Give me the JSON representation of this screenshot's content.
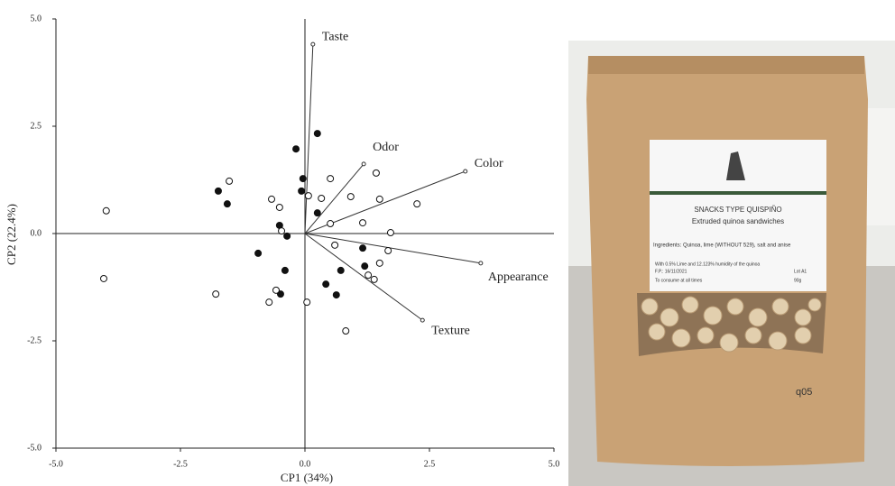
{
  "chart_data": {
    "type": "biplot",
    "x_label": "CP1 (34%)",
    "y_label": "CP2 (22.4%)",
    "xlim": [
      -5,
      5
    ],
    "ylim": [
      -5,
      5
    ],
    "xticks": [
      {
        "value": -5,
        "label": "-5.0"
      },
      {
        "value": -2.5,
        "label": "-2.5"
      },
      {
        "value": 0,
        "label": "0.0"
      },
      {
        "value": 2.5,
        "label": "2.5"
      },
      {
        "value": 5,
        "label": "5.0"
      }
    ],
    "yticks": [
      {
        "value": -5,
        "label": "-5.0"
      },
      {
        "value": -2.5,
        "label": "-2.5"
      },
      {
        "value": 0,
        "label": "0.0"
      },
      {
        "value": 2.5,
        "label": "2.5"
      },
      {
        "value": 5,
        "label": "5.0"
      }
    ],
    "series": [
      {
        "color": "#111111",
        "filled": true,
        "x": [
          0.25,
          -0.18,
          -0.04,
          -0.07,
          -1.74,
          -1.56,
          0.25,
          -0.51,
          -0.94,
          -0.36,
          1.16,
          -0.4,
          0.72,
          1.2,
          0.42,
          -0.49,
          0.63
        ],
        "y": [
          2.33,
          1.97,
          1.28,
          0.99,
          0.99,
          0.69,
          0.48,
          0.19,
          -0.46,
          -0.06,
          -0.34,
          -0.86,
          -0.86,
          -0.76,
          -1.18,
          -1.41,
          -1.43
        ]
      },
      {
        "color": "#111111",
        "filled": false,
        "x": [
          -3.99,
          -4.04,
          -1.52,
          -0.67,
          -0.51,
          -0.47,
          0.51,
          0.33,
          0.07,
          0.92,
          1.43,
          1.5,
          1.16,
          2.25,
          1.72,
          0.6,
          1.67,
          1.5,
          1.27,
          1.39,
          0.51,
          -1.79,
          -0.58,
          -0.72,
          0.04,
          0.82
        ],
        "y": [
          0.53,
          -1.05,
          1.22,
          0.8,
          0.61,
          0.06,
          1.28,
          0.82,
          0.88,
          0.86,
          1.41,
          0.8,
          0.25,
          0.69,
          0.02,
          -0.27,
          -0.4,
          -0.69,
          -0.97,
          -1.07,
          0.23,
          -1.41,
          -1.32,
          -1.6,
          -1.6,
          -2.27
        ]
      }
    ],
    "vectors": [
      {
        "label": "Taste",
        "x": 0.16,
        "y": 4.41
      },
      {
        "label": "Odor",
        "x": 1.18,
        "y": 1.62
      },
      {
        "label": "Color",
        "x": 3.22,
        "y": 1.45
      },
      {
        "label": "Appearance",
        "x": 3.53,
        "y": -0.69
      },
      {
        "label": "Texture",
        "x": 2.36,
        "y": -2.02
      }
    ]
  },
  "photo": {
    "texts": [
      "SNACKS TYPE QUISPIÑO",
      "Extruded quinoa sandwiches",
      "Ingredients: Quinoa, lime (WITHOUT 529), salt and anise",
      "With 0.5% Lime and 12.123% humidity of the quinoa",
      "F.P.: 16/11/2021",
      "Lot A1",
      "To consume at all times",
      "90g",
      "q05"
    ]
  }
}
